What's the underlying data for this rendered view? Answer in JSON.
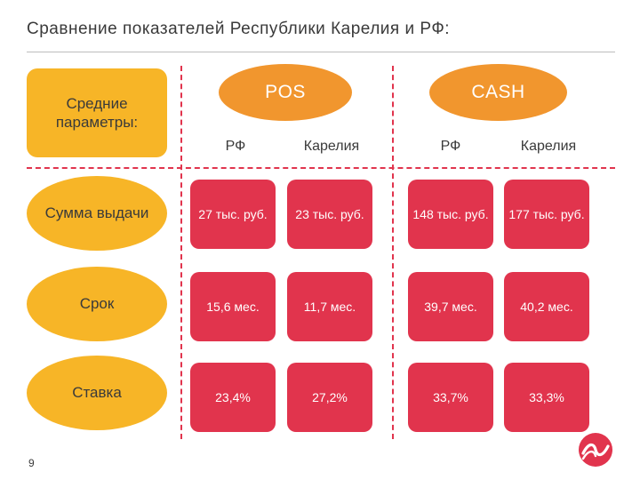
{
  "title": "Сравнение показателей Республики Карелия и РФ:",
  "params_label": "Средние параметры:",
  "groups": [
    {
      "label": "POS",
      "sub": [
        "РФ",
        "Карелия"
      ]
    },
    {
      "label": "CASH",
      "sub": [
        "РФ",
        "Карелия"
      ]
    }
  ],
  "rows": [
    {
      "label": "Сумма выдачи",
      "values": [
        "27 тыс. руб.",
        "23 тыс. руб.",
        "148 тыс. руб.",
        "177 тыс. руб."
      ]
    },
    {
      "label": "Срок",
      "values": [
        "15,6 мес.",
        "11,7 мес.",
        "39,7 мес.",
        "40,2 мес."
      ]
    },
    {
      "label": "Ставка",
      "values": [
        "23,4%",
        "27,2%",
        "33,7%",
        "33,3%"
      ]
    }
  ],
  "page_number": "9",
  "colors": {
    "accent_red": "#e1344d",
    "yellow": "#f7b527",
    "orange": "#f1962e"
  },
  "logo_icon": "brand-logo-icon"
}
